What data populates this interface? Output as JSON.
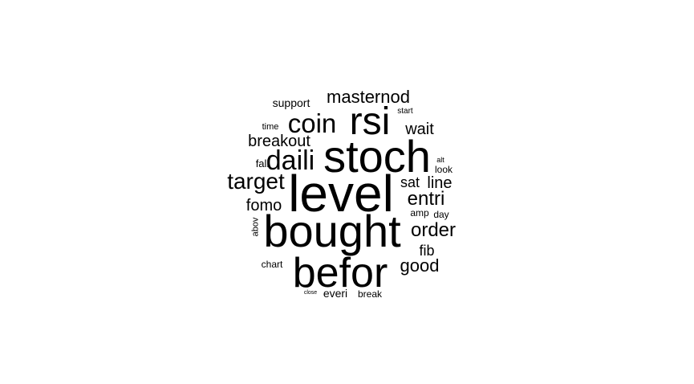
{
  "word_cloud": {
    "text_color": "#000000",
    "background_color": "#ffffff",
    "words": [
      {
        "text": "level",
        "weight": 64
      },
      {
        "text": "bought",
        "weight": 56
      },
      {
        "text": "stoch",
        "weight": 56
      },
      {
        "text": "befor",
        "weight": 52
      },
      {
        "text": "rsi",
        "weight": 48
      },
      {
        "text": "daili",
        "weight": 34
      },
      {
        "text": "coin",
        "weight": 33
      },
      {
        "text": "target",
        "weight": 28
      },
      {
        "text": "entri",
        "weight": 24
      },
      {
        "text": "order",
        "weight": 24
      },
      {
        "text": "good",
        "weight": 22
      },
      {
        "text": "masternod",
        "weight": 22
      },
      {
        "text": "wait",
        "weight": 20
      },
      {
        "text": "breakout",
        "weight": 20
      },
      {
        "text": "fomo",
        "weight": 20
      },
      {
        "text": "line",
        "weight": 20
      },
      {
        "text": "sat",
        "weight": 18
      },
      {
        "text": "fib",
        "weight": 18
      },
      {
        "text": "support",
        "weight": 14
      },
      {
        "text": "everi",
        "weight": 14
      },
      {
        "text": "fall",
        "weight": 13
      },
      {
        "text": "look",
        "weight": 12
      },
      {
        "text": "amp",
        "weight": 12
      },
      {
        "text": "day",
        "weight": 12
      },
      {
        "text": "chart",
        "weight": 12
      },
      {
        "text": "break",
        "weight": 12
      },
      {
        "text": "time",
        "weight": 11
      },
      {
        "text": "abov",
        "weight": 11
      },
      {
        "text": "start",
        "weight": 10
      },
      {
        "text": "alt",
        "weight": 9
      },
      {
        "text": "close",
        "weight": 7
      }
    ]
  }
}
